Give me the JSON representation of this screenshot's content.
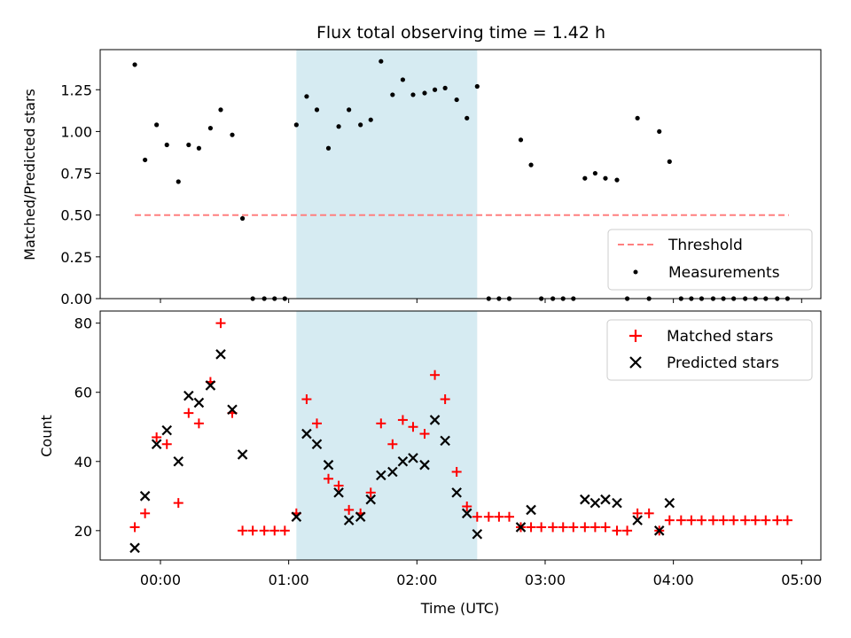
{
  "title": "Flux total observing time = 1.42 h",
  "colors": {
    "threshold": "#ff7f7f",
    "measurement": "#000000",
    "matched": "#ff0000",
    "predicted": "#000000",
    "shade": "#add8e6"
  },
  "chart_data": [
    {
      "type": "scatter",
      "ylabel": "Matched/Predicted stars",
      "xlim": [
        -0.47,
        5.15
      ],
      "ylim": [
        0,
        1.49
      ],
      "y_ticks": [
        0,
        0.25,
        0.5,
        0.75,
        1.0,
        1.25
      ],
      "y_tick_labels": [
        "0.00",
        "0.25",
        "0.50",
        "0.75",
        "1.00",
        "1.25"
      ],
      "legend": {
        "placement": "lower-right",
        "entries": [
          "Threshold",
          "Measurements"
        ]
      },
      "shaded_span": [
        1.06,
        2.47
      ],
      "threshold": {
        "name": "Threshold",
        "y": 0.5,
        "x": [
          -0.2,
          4.9
        ]
      },
      "series": [
        {
          "name": "Measurements",
          "points": [
            [
              -0.2,
              1.4
            ],
            [
              -0.12,
              0.83
            ],
            [
              -0.03,
              1.04
            ],
            [
              0.05,
              0.92
            ],
            [
              0.14,
              0.7
            ],
            [
              0.22,
              0.92
            ],
            [
              0.3,
              0.9
            ],
            [
              0.39,
              1.02
            ],
            [
              0.47,
              1.13
            ],
            [
              0.56,
              0.98
            ],
            [
              0.64,
              0.48
            ],
            [
              0.72,
              0.0
            ],
            [
              0.81,
              0.0
            ],
            [
              0.89,
              0.0
            ],
            [
              0.97,
              0.0
            ],
            [
              1.06,
              1.04
            ],
            [
              1.14,
              1.21
            ],
            [
              1.22,
              1.13
            ],
            [
              1.31,
              0.9
            ],
            [
              1.39,
              1.03
            ],
            [
              1.47,
              1.13
            ],
            [
              1.56,
              1.04
            ],
            [
              1.64,
              1.07
            ],
            [
              1.72,
              1.42
            ],
            [
              1.81,
              1.22
            ],
            [
              1.89,
              1.31
            ],
            [
              1.97,
              1.22
            ],
            [
              2.06,
              1.23
            ],
            [
              2.14,
              1.25
            ],
            [
              2.22,
              1.26
            ],
            [
              2.31,
              1.19
            ],
            [
              2.39,
              1.08
            ],
            [
              2.47,
              1.27
            ],
            [
              2.56,
              0.0
            ],
            [
              2.64,
              0.0
            ],
            [
              2.72,
              0.0
            ],
            [
              2.81,
              0.95
            ],
            [
              2.89,
              0.8
            ],
            [
              2.97,
              0.0
            ],
            [
              3.06,
              0.0
            ],
            [
              3.14,
              0.0
            ],
            [
              3.22,
              0.0
            ],
            [
              3.31,
              0.72
            ],
            [
              3.39,
              0.75
            ],
            [
              3.47,
              0.72
            ],
            [
              3.56,
              0.71
            ],
            [
              3.64,
              0.0
            ],
            [
              3.72,
              1.08
            ],
            [
              3.81,
              0.0
            ],
            [
              3.89,
              1.0
            ],
            [
              3.97,
              0.82
            ],
            [
              4.06,
              0.0
            ],
            [
              4.14,
              0.0
            ],
            [
              4.22,
              0.0
            ],
            [
              4.31,
              0.0
            ],
            [
              4.39,
              0.0
            ],
            [
              4.47,
              0.0
            ],
            [
              4.56,
              0.0
            ],
            [
              4.64,
              0.0
            ],
            [
              4.72,
              0.0
            ],
            [
              4.81,
              0.0
            ],
            [
              4.89,
              0.0
            ]
          ]
        }
      ]
    },
    {
      "type": "scatter",
      "xlabel": "Time (UTC)",
      "ylabel": "Count",
      "xlim": [
        -0.47,
        5.15
      ],
      "ylim": [
        11.5,
        83.5
      ],
      "x_ticks": [
        0,
        1,
        2,
        3,
        4,
        5
      ],
      "x_tick_labels": [
        "00:00",
        "01:00",
        "02:00",
        "03:00",
        "04:00",
        "05:00"
      ],
      "y_ticks": [
        20,
        40,
        60,
        80
      ],
      "y_tick_labels": [
        "20",
        "40",
        "60",
        "80"
      ],
      "legend": {
        "placement": "upper-right",
        "entries": [
          "Matched stars",
          "Predicted stars"
        ]
      },
      "shaded_span": [
        1.06,
        2.47
      ],
      "series": [
        {
          "name": "Matched stars",
          "marker": "+",
          "points": [
            [
              -0.2,
              21
            ],
            [
              -0.12,
              25
            ],
            [
              -0.03,
              47
            ],
            [
              0.05,
              45
            ],
            [
              0.14,
              28
            ],
            [
              0.22,
              54
            ],
            [
              0.3,
              51
            ],
            [
              0.39,
              63
            ],
            [
              0.47,
              80
            ],
            [
              0.56,
              54
            ],
            [
              0.64,
              20
            ],
            [
              0.72,
              20
            ],
            [
              0.81,
              20
            ],
            [
              0.89,
              20
            ],
            [
              0.97,
              20
            ],
            [
              1.06,
              25
            ],
            [
              1.14,
              58
            ],
            [
              1.22,
              51
            ],
            [
              1.31,
              35
            ],
            [
              1.39,
              33
            ],
            [
              1.47,
              26
            ],
            [
              1.56,
              25
            ],
            [
              1.64,
              31
            ],
            [
              1.72,
              51
            ],
            [
              1.81,
              45
            ],
            [
              1.89,
              52
            ],
            [
              1.97,
              50
            ],
            [
              2.06,
              48
            ],
            [
              2.14,
              65
            ],
            [
              2.22,
              58
            ],
            [
              2.31,
              37
            ],
            [
              2.39,
              27
            ],
            [
              2.47,
              24
            ],
            [
              2.56,
              24
            ],
            [
              2.64,
              24
            ],
            [
              2.72,
              24
            ],
            [
              2.81,
              21
            ],
            [
              2.89,
              21
            ],
            [
              2.97,
              21
            ],
            [
              3.06,
              21
            ],
            [
              3.14,
              21
            ],
            [
              3.22,
              21
            ],
            [
              3.31,
              21
            ],
            [
              3.39,
              21
            ],
            [
              3.47,
              21
            ],
            [
              3.56,
              20
            ],
            [
              3.64,
              20
            ],
            [
              3.72,
              25
            ],
            [
              3.81,
              25
            ],
            [
              3.89,
              20
            ],
            [
              3.97,
              23
            ],
            [
              4.06,
              23
            ],
            [
              4.14,
              23
            ],
            [
              4.22,
              23
            ],
            [
              4.31,
              23
            ],
            [
              4.39,
              23
            ],
            [
              4.47,
              23
            ],
            [
              4.56,
              23
            ],
            [
              4.64,
              23
            ],
            [
              4.72,
              23
            ],
            [
              4.81,
              23
            ],
            [
              4.89,
              23
            ]
          ]
        },
        {
          "name": "Predicted stars",
          "marker": "x",
          "points": [
            [
              -0.2,
              15
            ],
            [
              -0.12,
              30
            ],
            [
              -0.03,
              45
            ],
            [
              0.05,
              49
            ],
            [
              0.14,
              40
            ],
            [
              0.22,
              59
            ],
            [
              0.3,
              57
            ],
            [
              0.39,
              62
            ],
            [
              0.47,
              71
            ],
            [
              0.56,
              55
            ],
            [
              0.64,
              42
            ],
            [
              1.06,
              24
            ],
            [
              1.14,
              48
            ],
            [
              1.22,
              45
            ],
            [
              1.31,
              39
            ],
            [
              1.39,
              31
            ],
            [
              1.47,
              23
            ],
            [
              1.56,
              24
            ],
            [
              1.64,
              29
            ],
            [
              1.72,
              36
            ],
            [
              1.81,
              37
            ],
            [
              1.89,
              40
            ],
            [
              1.97,
              41
            ],
            [
              2.06,
              39
            ],
            [
              2.14,
              52
            ],
            [
              2.22,
              46
            ],
            [
              2.31,
              31
            ],
            [
              2.39,
              25
            ],
            [
              2.47,
              19
            ],
            [
              2.81,
              21
            ],
            [
              2.89,
              26
            ],
            [
              3.31,
              29
            ],
            [
              3.39,
              28
            ],
            [
              3.47,
              29
            ],
            [
              3.56,
              28
            ],
            [
              3.72,
              23
            ],
            [
              3.89,
              20
            ],
            [
              3.97,
              28
            ]
          ]
        }
      ]
    }
  ]
}
